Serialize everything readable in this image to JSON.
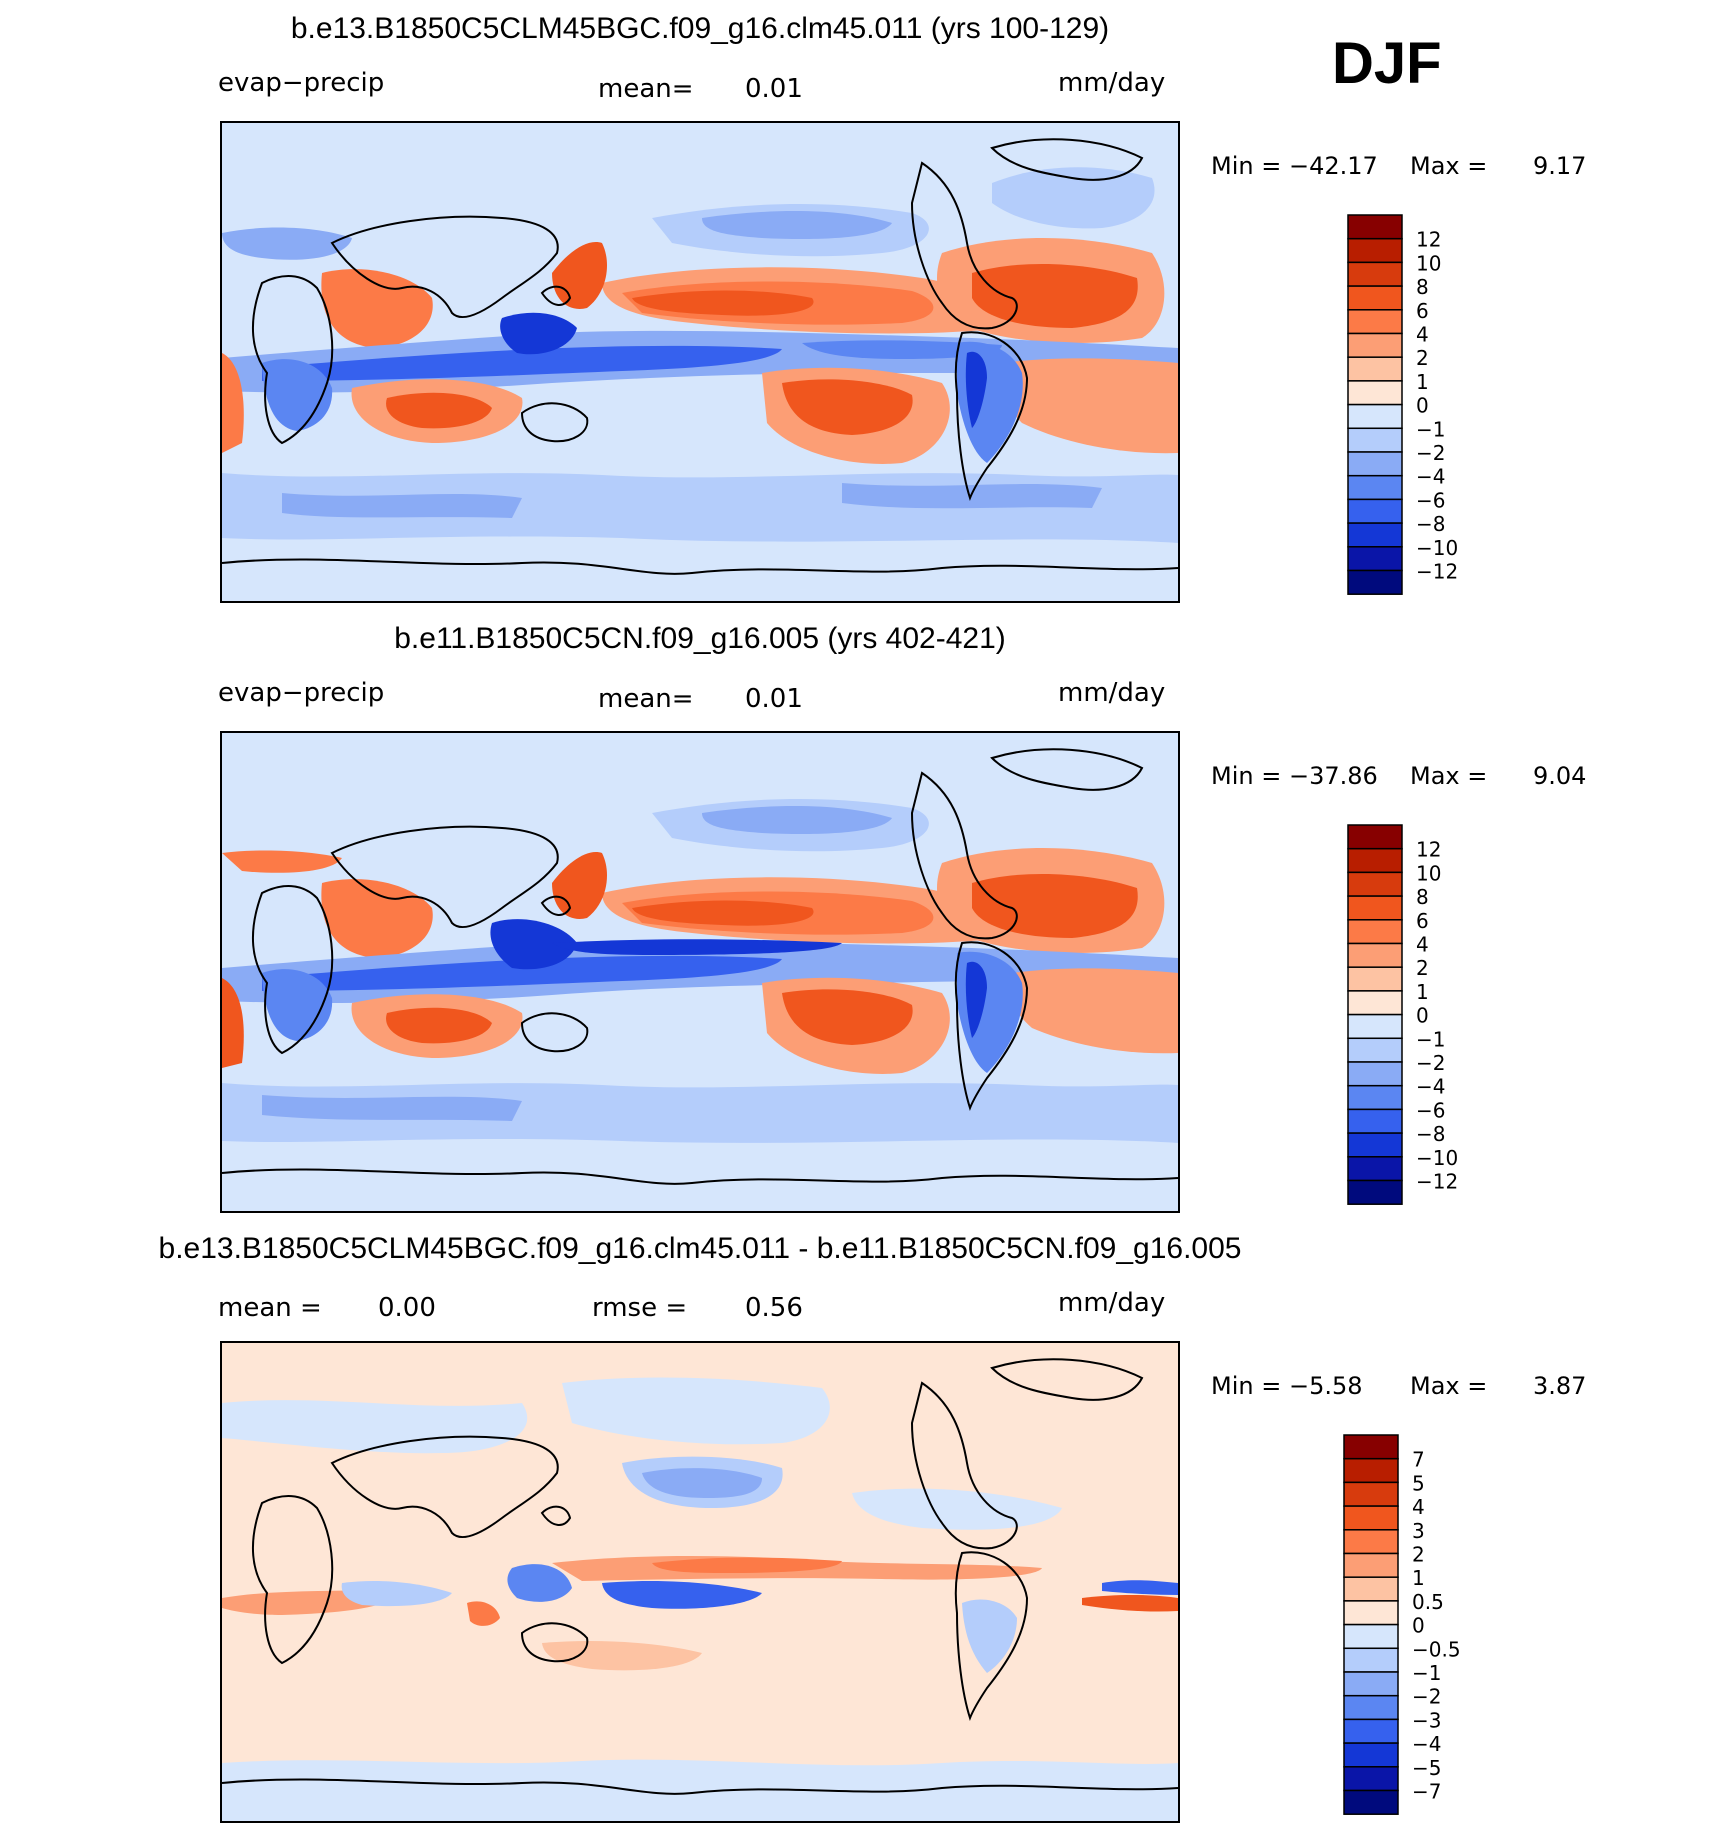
{
  "season": "DJF",
  "chart_data": [
    {
      "type": "heatmap",
      "title": "b.e13.B1850C5CLM45BGC.f09_g16.clm45.011 (yrs 100-129)",
      "left_label": "evap−precip",
      "center_label": "mean=",
      "center_value": "0.01",
      "units": "mm/day",
      "min_label": "Min  =  −42.17",
      "max_label": "Max  =",
      "max_value": "9.17",
      "colorbar": {
        "levels": [
          "12",
          "10",
          "8",
          "6",
          "4",
          "2",
          "1",
          "0",
          "−1",
          "−2",
          "−4",
          "−6",
          "−8",
          "−10",
          "−12"
        ],
        "colors": [
          "#870000",
          "#b81e00",
          "#d73b0d",
          "#f0561e",
          "#fc7a47",
          "#fc9e75",
          "#fdc3a3",
          "#fee6d6",
          "#d6e6fc",
          "#b4cdfb",
          "#8aabf5",
          "#5b86f2",
          "#3661ee",
          "#1437d6",
          "#0a15a8",
          "#000a7d"
        ]
      }
    },
    {
      "type": "heatmap",
      "title": "b.e11.B1850C5CN.f09_g16.005 (yrs 402-421)",
      "left_label": "evap−precip",
      "center_label": "mean=",
      "center_value": "0.01",
      "units": "mm/day",
      "min_label": "Min  =  −37.86",
      "max_label": "Max  =",
      "max_value": "9.04",
      "colorbar": {
        "levels": [
          "12",
          "10",
          "8",
          "6",
          "4",
          "2",
          "1",
          "0",
          "−1",
          "−2",
          "−4",
          "−6",
          "−8",
          "−10",
          "−12"
        ],
        "colors": [
          "#870000",
          "#b81e00",
          "#d73b0d",
          "#f0561e",
          "#fc7a47",
          "#fc9e75",
          "#fdc3a3",
          "#fee6d6",
          "#d6e6fc",
          "#b4cdfb",
          "#8aabf5",
          "#5b86f2",
          "#3661ee",
          "#1437d6",
          "#0a15a8",
          "#000a7d"
        ]
      }
    },
    {
      "type": "heatmap",
      "title": "b.e13.B1850C5CLM45BGC.f09_g16.clm45.011 - b.e11.B1850C5CN.f09_g16.005",
      "left_label": "mean  =",
      "center_label": "0.00",
      "rmse_label": "rmse  =",
      "rmse_value": "0.56",
      "units": "mm/day",
      "min_label": "Min  =   −5.58",
      "max_label": "Max  =",
      "max_value": "3.87",
      "colorbar": {
        "levels": [
          "7",
          "5",
          "4",
          "3",
          "2",
          "1",
          "0.5",
          "0",
          "−0.5",
          "−1",
          "−2",
          "−3",
          "−4",
          "−5",
          "−7"
        ],
        "colors": [
          "#870000",
          "#b81e00",
          "#d73b0d",
          "#f0561e",
          "#fc7a47",
          "#fc9e75",
          "#fdc3a3",
          "#fee6d6",
          "#d6e6fc",
          "#b4cdfb",
          "#8aabf5",
          "#5b86f2",
          "#3661ee",
          "#1437d6",
          "#0a15a8",
          "#000a7d"
        ]
      }
    }
  ]
}
